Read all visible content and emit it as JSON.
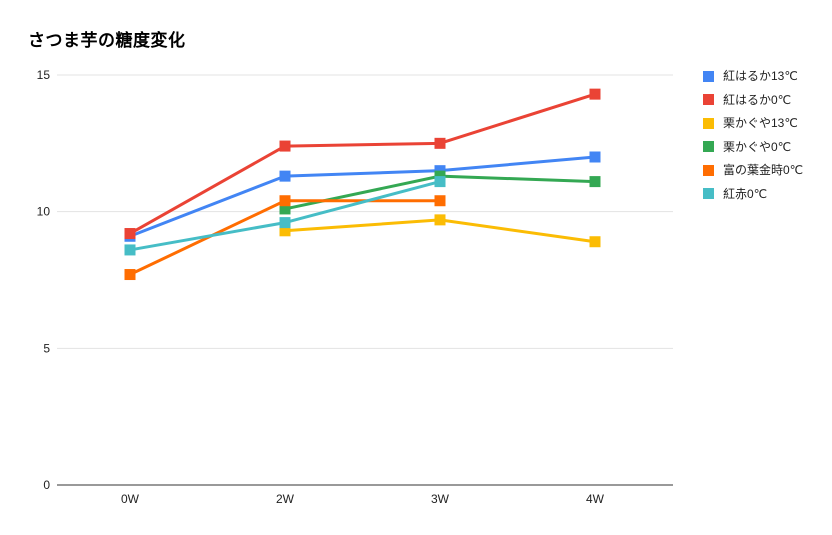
{
  "chart_data": {
    "type": "line",
    "title": "さつま芋の糖度変化",
    "xlabel": "",
    "ylabel": "",
    "categories": [
      "0W",
      "2W",
      "3W",
      "4W"
    ],
    "yticks": [
      0,
      5,
      10,
      15
    ],
    "ylim": [
      0,
      15
    ],
    "grid": true,
    "legend_position": "right",
    "marker": "square",
    "axis_text_color": "#222222",
    "gridline_color": "#e3e3e3",
    "baseline_color": "#333333",
    "series": [
      {
        "name": "紅はるか13℃",
        "color": "#4285F4",
        "values": [
          9.1,
          11.3,
          11.5,
          12.0
        ]
      },
      {
        "name": "紅はるか0℃",
        "color": "#EA4335",
        "values": [
          9.2,
          12.4,
          12.5,
          14.3
        ]
      },
      {
        "name": "栗かぐや13℃",
        "color": "#FBBC04",
        "values": [
          null,
          9.3,
          9.7,
          8.9
        ]
      },
      {
        "name": "栗かぐや0℃",
        "color": "#34A853",
        "values": [
          null,
          10.1,
          11.3,
          11.1
        ]
      },
      {
        "name": "富の葉金時0℃",
        "color": "#FF6D01",
        "values": [
          7.7,
          10.4,
          10.4,
          null
        ]
      },
      {
        "name": "紅赤0℃",
        "color": "#46BDC6",
        "values": [
          8.6,
          9.6,
          11.1,
          null
        ]
      }
    ]
  }
}
